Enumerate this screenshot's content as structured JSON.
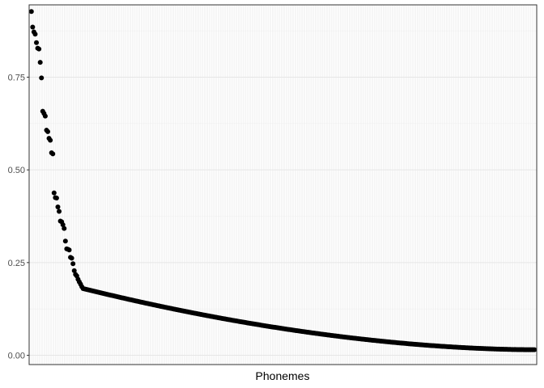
{
  "chart_data": {
    "type": "scatter",
    "title": "",
    "xlabel": "Phonemes",
    "ylabel": "",
    "x_tick_labels": "none",
    "ylim": [
      -0.025,
      0.945
    ],
    "yticks": [
      0.0,
      0.25,
      0.5,
      0.75
    ],
    "ytick_labels": [
      "0.00",
      "0.25",
      "0.50",
      "0.75"
    ],
    "grid": true,
    "legend": "none",
    "point_color": "#000000",
    "n_points": 400,
    "values": [
      0.927,
      0.885,
      0.872,
      0.866,
      0.843,
      0.828,
      0.826,
      0.79,
      0.748,
      0.658,
      0.652,
      0.645,
      0.607,
      0.603,
      0.585,
      0.58,
      0.546,
      0.543,
      0.438,
      0.425,
      0.424,
      0.4,
      0.388,
      0.362,
      0.36,
      0.352,
      0.342,
      0.308,
      0.287,
      0.286,
      0.284,
      0.264,
      0.262,
      0.247,
      0.228,
      0.218,
      0.214,
      0.205,
      0.198,
      0.192,
      0.185
    ],
    "tail": {
      "start": 0.18,
      "end": 0.015,
      "decay": 0.55
    }
  }
}
